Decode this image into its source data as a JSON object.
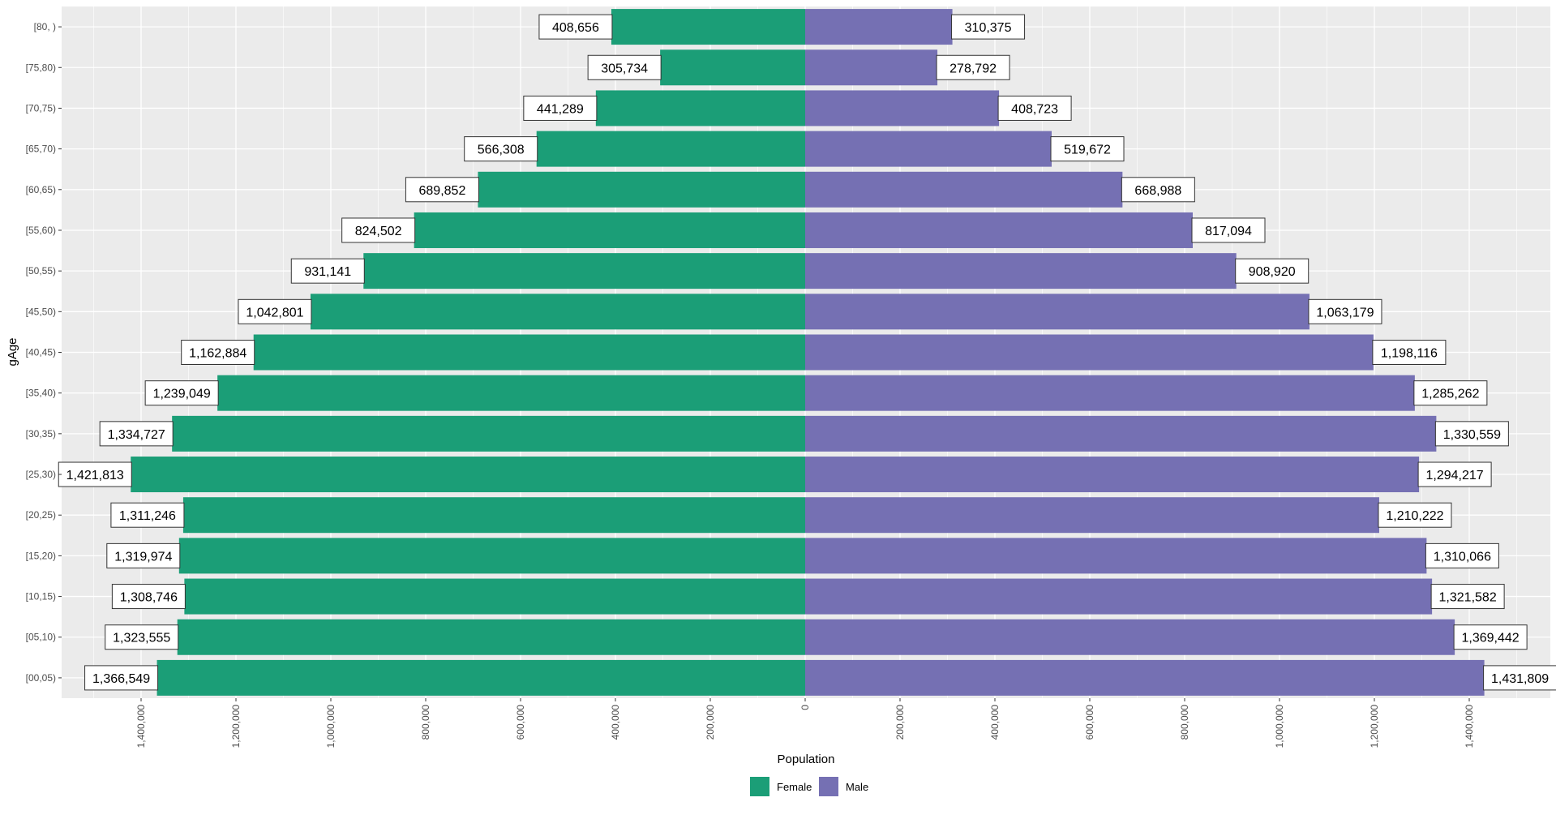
{
  "chart_data": {
    "type": "bar",
    "orientation": "horizontal",
    "layout": "population-pyramid",
    "title": "",
    "xlabel": "Population",
    "ylabel": "gAge",
    "xlim": [
      -1500000,
      1500000
    ],
    "xticks": [
      -1400000,
      -1200000,
      -1000000,
      -800000,
      -600000,
      -400000,
      -200000,
      0,
      200000,
      400000,
      600000,
      800000,
      1000000,
      1200000,
      1400000
    ],
    "xtick_labels": [
      "1,400,000",
      "1,200,000",
      "1,000,000",
      "800,000",
      "600,000",
      "400,000",
      "200,000",
      "0",
      "200,000",
      "400,000",
      "600,000",
      "800,000",
      "1,000,000",
      "1,200,000",
      "1,400,000"
    ],
    "categories": [
      "[00,05)",
      "[05,10)",
      "[10,15)",
      "[15,20)",
      "[20,25)",
      "[25,30)",
      "[30,35)",
      "[35,40)",
      "[40,45)",
      "[45,50)",
      "[50,55)",
      "[55,60)",
      "[60,65)",
      "[65,70)",
      "[70,75)",
      "[75,80)",
      "[80, )"
    ],
    "series": [
      {
        "name": "Female",
        "color": "#1B9E77",
        "side": "left",
        "values": [
          1366549,
          1323555,
          1308746,
          1319974,
          1311246,
          1421813,
          1334727,
          1239049,
          1162884,
          1042801,
          931141,
          824502,
          689852,
          566308,
          441289,
          305734,
          408656
        ],
        "labels": [
          "1,366,549",
          "1,323,555",
          "1,308,746",
          "1,319,974",
          "1,311,246",
          "1,421,813",
          "1,334,727",
          "1,239,049",
          "1,162,884",
          "1,042,801",
          "931,141",
          "824,502",
          "689,852",
          "566,308",
          "441,289",
          "305,734",
          "408,656"
        ]
      },
      {
        "name": "Male",
        "color": "#7570B3",
        "side": "right",
        "values": [
          1431809,
          1369442,
          1321582,
          1310066,
          1210222,
          1294217,
          1330559,
          1285262,
          1198116,
          1063179,
          908920,
          817094,
          668988,
          519672,
          408723,
          278792,
          310375
        ],
        "labels": [
          "1,431,809",
          "1,369,442",
          "1,321,582",
          "1,310,066",
          "1,210,222",
          "1,294,217",
          "1,330,559",
          "1,285,262",
          "1,198,116",
          "1,063,179",
          "908,920",
          "817,094",
          "668,988",
          "519,672",
          "408,723",
          "278,792",
          "310,375"
        ]
      }
    ],
    "legend": {
      "position": "bottom",
      "entries": [
        "Female",
        "Male"
      ]
    },
    "grid": true,
    "panel_background": "#EBEBEB",
    "grid_color": "#FFFFFF"
  }
}
